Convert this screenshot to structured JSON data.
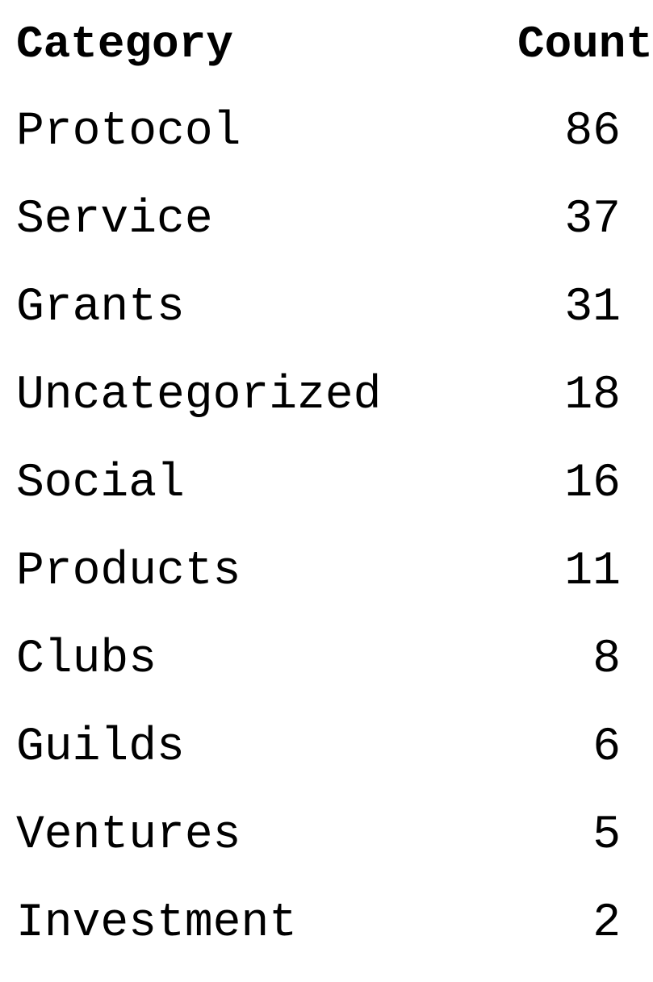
{
  "table": {
    "headers": {
      "category": "Category",
      "count": "Count"
    },
    "rows": [
      {
        "category": "Protocol",
        "count": "86"
      },
      {
        "category": "Service",
        "count": "37"
      },
      {
        "category": "Grants",
        "count": "31"
      },
      {
        "category": "Uncategorized",
        "count": "18"
      },
      {
        "category": "Social",
        "count": "16"
      },
      {
        "category": "Products",
        "count": "11"
      },
      {
        "category": "Clubs",
        "count": "8"
      },
      {
        "category": "Guilds",
        "count": "6"
      },
      {
        "category": "Ventures",
        "count": "5"
      },
      {
        "category": "Investment",
        "count": "2"
      }
    ]
  }
}
